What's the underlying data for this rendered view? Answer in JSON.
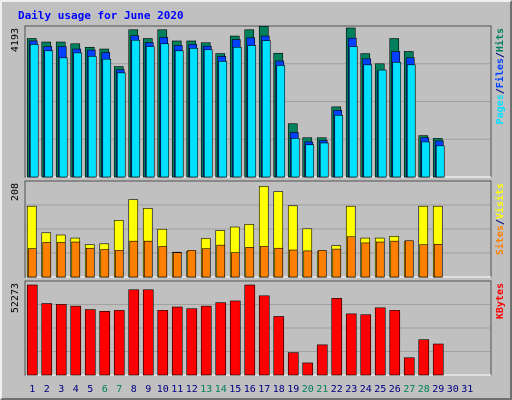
{
  "title": "Daily usage for June 2020",
  "colors": {
    "hits": "#00805c",
    "files": "#0040ff",
    "pages": "#00e0ff",
    "visits": "#ffff00",
    "sites": "#ff8000",
    "kbytes": "#ff0000",
    "weekend": "#00805c",
    "weekday": "#000080",
    "background": "#c0c0c0"
  },
  "chart_data": [
    {
      "type": "bar",
      "panel": "top",
      "axis_max_label": "4193",
      "ylim": [
        0,
        4193
      ],
      "side_label_parts": [
        "Pages",
        "/",
        "Files",
        "/",
        "Hits"
      ],
      "series": [
        {
          "name": "Hits",
          "values": [
            3950,
            3850,
            3850,
            3800,
            3700,
            3650,
            3150,
            4200,
            3950,
            4200,
            3880,
            3880,
            3830,
            3520,
            4020,
            4200,
            4300,
            3530,
            1520,
            1120,
            1120,
            2000,
            4250,
            3520,
            3230,
            3950,
            3580,
            1180,
            1100
          ]
        },
        {
          "name": "Files",
          "values": [
            3880,
            3720,
            3720,
            3650,
            3620,
            3550,
            3060,
            4030,
            3830,
            3980,
            3750,
            3780,
            3730,
            3440,
            3920,
            3970,
            4020,
            3310,
            1270,
            1000,
            1040,
            1900,
            3960,
            3370,
            3030,
            3580,
            3400,
            1120,
            1030
          ]
        },
        {
          "name": "Pages",
          "values": [
            3780,
            3600,
            3400,
            3540,
            3440,
            3360,
            2970,
            3900,
            3720,
            3800,
            3600,
            3670,
            3630,
            3300,
            3700,
            3750,
            3890,
            3180,
            1100,
            920,
            970,
            1760,
            3720,
            3200,
            3050,
            3270,
            3200,
            1000,
            890
          ]
        }
      ]
    },
    {
      "type": "bar",
      "panel": "middle",
      "axis_max_label": "208",
      "ylim": [
        0,
        208
      ],
      "side_label_parts": [
        "Sites",
        "/",
        "Visits"
      ],
      "series": [
        {
          "name": "Visits",
          "values": [
            160,
            100,
            95,
            88,
            73,
            75,
            128,
            175,
            155,
            108,
            56,
            58,
            87,
            105,
            113,
            119,
            205,
            193,
            161,
            109,
            57,
            71,
            160,
            88,
            88,
            92,
            80,
            160,
            160
          ]
        },
        {
          "name": "Sites",
          "values": [
            64,
            78,
            78,
            79,
            65,
            62,
            60,
            81,
            81,
            69,
            55,
            60,
            64,
            72,
            55,
            67,
            69,
            65,
            61,
            59,
            60,
            63,
            91,
            77,
            79,
            81,
            82,
            73,
            74
          ]
        }
      ]
    },
    {
      "type": "bar",
      "panel": "bottom",
      "axis_max_label": "52273",
      "ylim": [
        0,
        52273
      ],
      "side_label_parts": [
        "KBytes"
      ],
      "series": [
        {
          "name": "KBytes",
          "values": [
            52273,
            41500,
            41000,
            40000,
            38000,
            37000,
            37500,
            49500,
            49500,
            37500,
            39500,
            38500,
            40000,
            42000,
            43000,
            52273,
            46000,
            34000,
            13000,
            7000,
            17500,
            44500,
            35500,
            35000,
            39000,
            37500,
            10000,
            20500,
            18000
          ]
        }
      ]
    }
  ],
  "days": [
    {
      "label": "1",
      "weekend": false
    },
    {
      "label": "2",
      "weekend": false
    },
    {
      "label": "3",
      "weekend": false
    },
    {
      "label": "4",
      "weekend": false
    },
    {
      "label": "5",
      "weekend": false
    },
    {
      "label": "6",
      "weekend": true
    },
    {
      "label": "7",
      "weekend": true
    },
    {
      "label": "8",
      "weekend": false
    },
    {
      "label": "9",
      "weekend": false
    },
    {
      "label": "10",
      "weekend": false
    },
    {
      "label": "11",
      "weekend": false
    },
    {
      "label": "12",
      "weekend": false
    },
    {
      "label": "13",
      "weekend": true
    },
    {
      "label": "14",
      "weekend": true
    },
    {
      "label": "15",
      "weekend": false
    },
    {
      "label": "16",
      "weekend": false
    },
    {
      "label": "17",
      "weekend": false
    },
    {
      "label": "18",
      "weekend": false
    },
    {
      "label": "19",
      "weekend": false
    },
    {
      "label": "20",
      "weekend": true
    },
    {
      "label": "21",
      "weekend": true
    },
    {
      "label": "22",
      "weekend": false
    },
    {
      "label": "23",
      "weekend": false
    },
    {
      "label": "24",
      "weekend": false
    },
    {
      "label": "25",
      "weekend": false
    },
    {
      "label": "26",
      "weekend": false
    },
    {
      "label": "27",
      "weekend": true
    },
    {
      "label": "28",
      "weekend": true
    },
    {
      "label": "29",
      "weekend": false
    },
    {
      "label": "30",
      "weekend": false
    },
    {
      "label": "31",
      "weekend": false
    }
  ]
}
